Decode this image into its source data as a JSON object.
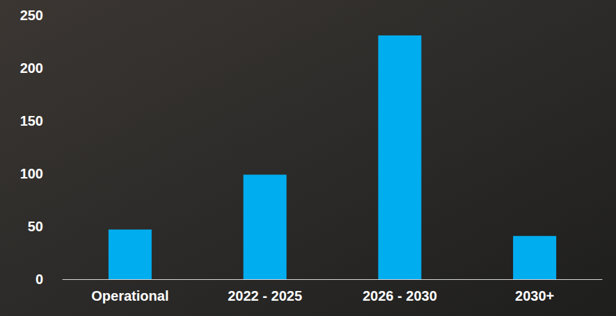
{
  "chart_data": {
    "type": "bar",
    "categories": [
      "Operational",
      "2022 - 2025",
      "2026 - 2030",
      "2030+"
    ],
    "values": [
      47,
      99,
      231,
      41
    ],
    "color": "#00adef",
    "ylim": [
      0,
      250
    ],
    "yticks": [
      0,
      50,
      100,
      150,
      200,
      250
    ],
    "grid": false
  }
}
